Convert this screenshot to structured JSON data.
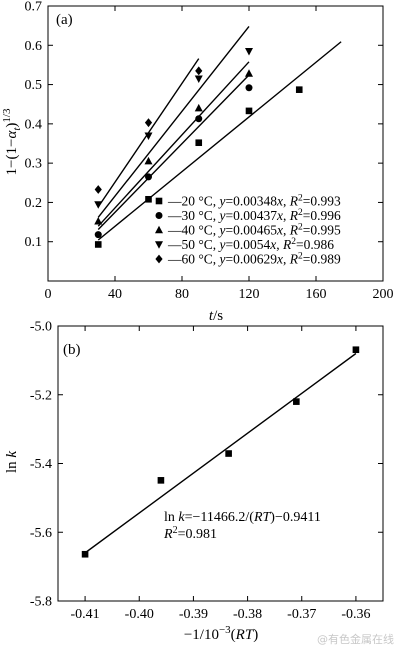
{
  "watermark": "@有色金属在线",
  "chart_data": [
    {
      "panel_label": "(a)",
      "type": "scatter",
      "ylabel": "1−(1−α_t)^1/3",
      "xlabel": "t/s",
      "xlim": [
        0,
        200
      ],
      "ylim": [
        0,
        0.7
      ],
      "x_ticks": [
        0,
        40,
        80,
        120,
        160,
        200
      ],
      "x_tick_labels": [
        "0",
        "40",
        "80",
        "120",
        "160",
        "200"
      ],
      "y_ticks": [
        0.1,
        0.2,
        0.3,
        0.4,
        0.5,
        0.6,
        0.7
      ],
      "y_tick_labels": [
        "0.1",
        "0.2",
        "0.3",
        "0.4",
        "0.5",
        "0.6",
        "0.7"
      ],
      "legend_position": "bottom-right",
      "series": [
        {
          "name": "20 °C, y=0.00348x, R²=0.993",
          "temp": "20 °C",
          "eq": "0.00348",
          "r2": "0.993",
          "marker": "square",
          "slope": 0.00348,
          "line_x": [
            30,
            175
          ],
          "x": [
            30,
            60,
            90,
            120,
            150
          ],
          "y": [
            0.093,
            0.208,
            0.352,
            0.433,
            0.487
          ]
        },
        {
          "name": "30 °C, y=0.00437x, R²=0.996",
          "temp": "30 °C",
          "eq": "0.00437",
          "r2": "0.996",
          "marker": "circle",
          "slope": 0.00437,
          "line_x": [
            30,
            120
          ],
          "x": [
            30,
            60,
            90,
            120
          ],
          "y": [
            0.118,
            0.265,
            0.413,
            0.492
          ]
        },
        {
          "name": "40 °C, y=0.00465x, R²=0.995",
          "temp": "40 °C",
          "eq": "0.00465",
          "r2": "0.995",
          "marker": "triangle-up",
          "slope": 0.00465,
          "line_x": [
            30,
            120
          ],
          "x": [
            30,
            60,
            90,
            120
          ],
          "y": [
            0.152,
            0.305,
            0.44,
            0.528
          ]
        },
        {
          "name": "50 °C, y=0.0054x, R²=0.986",
          "temp": "50 °C",
          "eq": "0.0054",
          "r2": "0.986",
          "marker": "triangle-down",
          "slope": 0.0054,
          "line_x": [
            30,
            120
          ],
          "x": [
            30,
            60,
            90,
            120
          ],
          "y": [
            0.195,
            0.37,
            0.515,
            0.585
          ]
        },
        {
          "name": "60 °C, y=0.00629x, R²=0.989",
          "temp": "60 °C",
          "eq": "0.00629",
          "r2": "0.989",
          "marker": "diamond",
          "slope": 0.00629,
          "line_x": [
            30,
            90
          ],
          "x": [
            30,
            60,
            90
          ],
          "y": [
            0.233,
            0.403,
            0.535
          ]
        }
      ]
    },
    {
      "panel_label": "(b)",
      "type": "scatter",
      "ylabel": "ln k",
      "xlabel": "−1/10⁻³(RT)",
      "xlim": [
        -0.415,
        -0.355
      ],
      "ylim": [
        -5.8,
        -5.0
      ],
      "x_ticks": [
        -0.41,
        -0.4,
        -0.39,
        -0.38,
        -0.37,
        -0.36
      ],
      "x_tick_labels": [
        "-0.41",
        "-0.40",
        "-0.39",
        "-0.38",
        "-0.37",
        "-0.36"
      ],
      "y_ticks": [
        -5.8,
        -5.6,
        -5.4,
        -5.2,
        -5.0
      ],
      "y_tick_labels": [
        "-5.8",
        "-5.6",
        "-5.4",
        "-5.2",
        "-5.0"
      ],
      "annotation_line1": "ln k=−11466.2/(RT)−0.9411",
      "annotation_line2": "R²=0.981",
      "fit_line": {
        "x": [
          -0.41,
          -0.36
        ],
        "y": [
          -5.66,
          -5.08
        ]
      },
      "series": [
        {
          "marker": "square",
          "x": [
            -0.41,
            -0.396,
            -0.3835,
            -0.371,
            -0.36
          ],
          "y": [
            -5.664,
            -5.449,
            -5.371,
            -5.22,
            -5.069
          ]
        }
      ]
    }
  ]
}
